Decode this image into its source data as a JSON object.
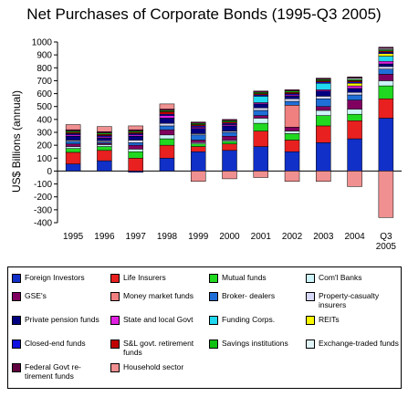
{
  "chart_data": {
    "type": "bar",
    "title": "Net Purchases of Corporate Bonds (1995-Q3 2005)",
    "ylabel": "US$ Billions (annual)",
    "ylim": [
      -400,
      1000
    ],
    "yticks": [
      -400,
      -300,
      -200,
      -100,
      0,
      100,
      200,
      300,
      400,
      500,
      600,
      700,
      800,
      900,
      1000
    ],
    "grid": false,
    "categories": [
      "1995",
      "1996",
      "1997",
      "1998",
      "1999",
      "2000",
      "2001",
      "2002",
      "2003",
      "2004",
      "Q3 2005"
    ],
    "series": [
      {
        "name": "Foreign Investors",
        "color": "#1030c8",
        "values": [
          55,
          80,
          -10,
          100,
          150,
          160,
          190,
          150,
          220,
          250,
          410
        ]
      },
      {
        "name": "Life Insurers",
        "color": "#e82020",
        "values": [
          90,
          80,
          100,
          100,
          40,
          50,
          120,
          90,
          130,
          140,
          150
        ]
      },
      {
        "name": "Mutual funds",
        "color": "#20d820",
        "values": [
          30,
          30,
          50,
          50,
          20,
          20,
          60,
          50,
          80,
          50,
          100
        ]
      },
      {
        "name": "Com'l Banks",
        "color": "#ccf4f8",
        "values": [
          15,
          15,
          20,
          30,
          10,
          10,
          40,
          20,
          40,
          40,
          40
        ]
      },
      {
        "name": "GSE's",
        "color": "#800060",
        "values": [
          20,
          10,
          30,
          40,
          20,
          30,
          20,
          30,
          30,
          70,
          50
        ]
      },
      {
        "name": "Money market  funds",
        "color": "#f08080",
        "values": [
          0,
          0,
          0,
          0,
          0,
          0,
          0,
          170,
          0,
          0,
          0
        ]
      },
      {
        "name": "Broker- dealers",
        "color": "#1e6ed8",
        "values": [
          20,
          10,
          20,
          30,
          40,
          30,
          40,
          30,
          60,
          40,
          40
        ]
      },
      {
        "name": "Property-casualty insurers",
        "color": "#d8d8f8",
        "values": [
          10,
          10,
          20,
          20,
          10,
          10,
          20,
          20,
          20,
          20,
          20
        ]
      },
      {
        "name": "Private pension funds",
        "color": "#000080",
        "values": [
          30,
          20,
          30,
          40,
          40,
          40,
          30,
          20,
          40,
          30,
          20
        ]
      },
      {
        "name": "State and local Govt",
        "color": "#e020e0",
        "values": [
          10,
          10,
          10,
          20,
          10,
          10,
          10,
          10,
          10,
          20,
          20
        ]
      },
      {
        "name": "Funding Corps.",
        "color": "#20d8f0",
        "values": [
          0,
          0,
          0,
          0,
          0,
          0,
          50,
          0,
          50,
          0,
          40
        ]
      },
      {
        "name": "REITs",
        "color": "#f8f800",
        "values": [
          0,
          0,
          0,
          0,
          0,
          0,
          0,
          0,
          0,
          20,
          20
        ]
      },
      {
        "name": "Closed-end funds",
        "color": "#1010e0",
        "values": [
          10,
          10,
          10,
          10,
          10,
          10,
          10,
          10,
          10,
          10,
          10
        ]
      },
      {
        "name": "S&L govt. retirement funds",
        "color": "#c00000",
        "values": [
          10,
          10,
          10,
          20,
          10,
          10,
          10,
          10,
          10,
          10,
          10
        ]
      },
      {
        "name": "Savings institutions",
        "color": "#10c010",
        "values": [
          10,
          10,
          10,
          10,
          10,
          10,
          10,
          10,
          10,
          10,
          10
        ]
      },
      {
        "name": "Exchange-traded funds",
        "color": "#e0f4f8",
        "values": [
          0,
          0,
          0,
          0,
          0,
          0,
          0,
          0,
          0,
          10,
          10
        ]
      },
      {
        "name": "Federal Govt re-tirement funds",
        "color": "#600040",
        "values": [
          10,
          10,
          10,
          10,
          10,
          10,
          10,
          10,
          10,
          10,
          10
        ]
      },
      {
        "name": "Household sector",
        "color": "#f09090",
        "values": [
          40,
          40,
          30,
          40,
          -80,
          -60,
          -50,
          -80,
          -80,
          -120,
          -360
        ]
      }
    ]
  }
}
